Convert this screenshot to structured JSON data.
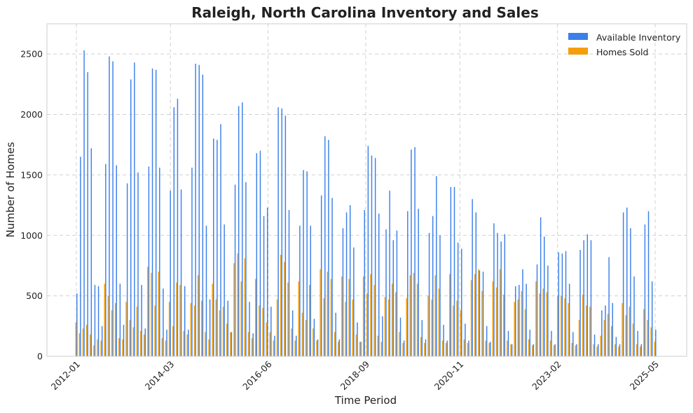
{
  "chart_data": {
    "type": "bar",
    "title": "Raleigh, North Carolina Inventory and Sales",
    "xlabel": "Time Period",
    "ylabel": "Number of Homes",
    "ylim": [
      0,
      2750
    ],
    "y_ticks": [
      0,
      500,
      1000,
      1500,
      2000,
      2500
    ],
    "x_tick_labels": [
      "2012-01",
      "2014-03",
      "2016-06",
      "2018-09",
      "2020-11",
      "2023-02",
      "2025-05"
    ],
    "grid": true,
    "legend_position": "top-right",
    "colors": {
      "inventory": "#3b7fe8",
      "sold": "#f59e0b"
    },
    "x_start": "2012-01",
    "x_end": "2025-05",
    "series": [
      {
        "name": "Available Inventory",
        "values": [
          520,
          1650,
          2530,
          2350,
          1720,
          590,
          580,
          250,
          1590,
          2480,
          2440,
          1580,
          600,
          260,
          1430,
          2290,
          2430,
          1520,
          590,
          230,
          1570,
          2380,
          2370,
          1560,
          560,
          220,
          1370,
          2060,
          2130,
          1380,
          580,
          220,
          1560,
          2420,
          2410,
          2330,
          1080,
          470,
          1800,
          1790,
          1920,
          1090,
          460,
          200,
          1420,
          2070,
          2100,
          1440,
          450,
          190,
          1680,
          1700,
          1160,
          1230,
          410,
          170,
          2060,
          2050,
          1990,
          1210,
          380,
          170,
          1080,
          1540,
          1530,
          1080,
          310,
          140,
          1330,
          1820,
          1790,
          1310,
          360,
          140,
          1060,
          1190,
          1250,
          900,
          280,
          120,
          1210,
          1740,
          1660,
          1640,
          1180,
          330,
          1050,
          1370,
          960,
          1040,
          320,
          130,
          1200,
          1710,
          1730,
          1220,
          300,
          140,
          1020,
          1160,
          1490,
          1000,
          260,
          130,
          1400,
          1400,
          940,
          890,
          270,
          130,
          1300,
          1190,
          710,
          700,
          250,
          120,
          1100,
          1020,
          950,
          1010,
          210,
          100,
          580,
          590,
          720,
          600,
          220,
          100,
          760,
          1150,
          990,
          750,
          210,
          100,
          860,
          850,
          870,
          600,
          200,
          100,
          880,
          960,
          1010,
          960,
          180,
          100,
          380,
          420,
          820,
          440,
          160,
          100,
          1190,
          1230,
          1060,
          660,
          210,
          100,
          1090,
          1200,
          620,
          220
        ]
      },
      {
        "name": "Homes Sold",
        "values": [
          280,
          190,
          230,
          260,
          180,
          90,
          140,
          130,
          600,
          500,
          380,
          440,
          150,
          140,
          450,
          300,
          240,
          410,
          210,
          180,
          740,
          690,
          420,
          700,
          150,
          130,
          450,
          250,
          610,
          590,
          210,
          180,
          440,
          420,
          670,
          460,
          200,
          140,
          600,
          470,
          380,
          410,
          270,
          200,
          770,
          850,
          620,
          810,
          200,
          150,
          640,
          420,
          400,
          280,
          200,
          130,
          470,
          840,
          780,
          610,
          230,
          130,
          620,
          360,
          300,
          590,
          230,
          130,
          720,
          480,
          700,
          640,
          200,
          120,
          660,
          450,
          640,
          470,
          180,
          120,
          660,
          520,
          680,
          590,
          170,
          120,
          490,
          470,
          600,
          530,
          200,
          110,
          480,
          670,
          690,
          600,
          160,
          110,
          500,
          470,
          670,
          560,
          130,
          110,
          680,
          420,
          460,
          380,
          140,
          110,
          630,
          680,
          720,
          540,
          130,
          110,
          620,
          570,
          720,
          510,
          130,
          100,
          450,
          470,
          540,
          390,
          140,
          90,
          620,
          520,
          560,
          530,
          130,
          90,
          500,
          500,
          480,
          440,
          110,
          90,
          300,
          510,
          420,
          410,
          100,
          80,
          170,
          300,
          350,
          250,
          100,
          80,
          440,
          340,
          410,
          270,
          100,
          80,
          390,
          300,
          240,
          120
        ]
      }
    ]
  }
}
